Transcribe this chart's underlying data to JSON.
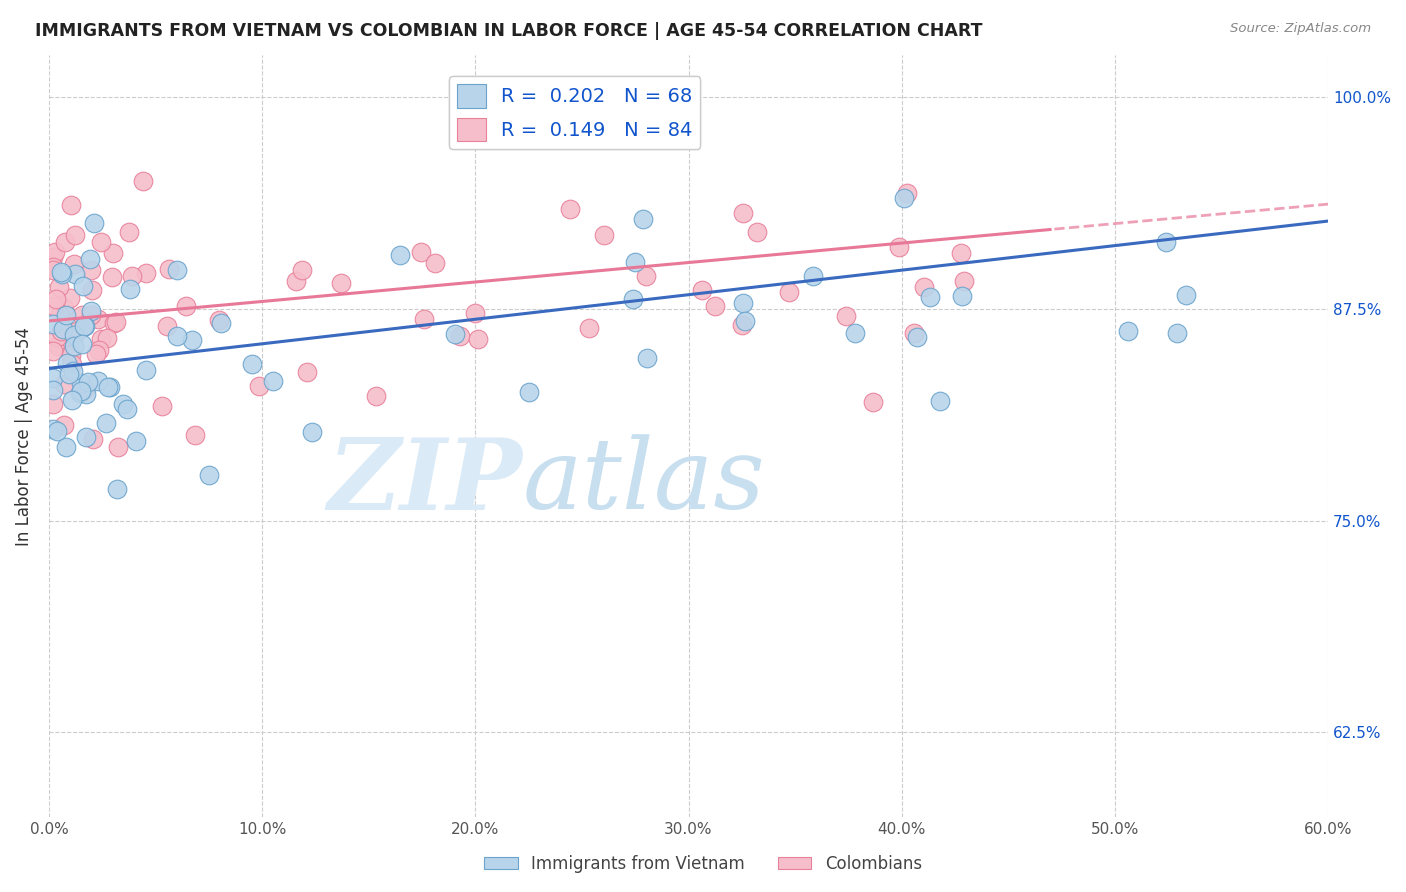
{
  "title": "IMMIGRANTS FROM VIETNAM VS COLOMBIAN IN LABOR FORCE | AGE 45-54 CORRELATION CHART",
  "source": "Source: ZipAtlas.com",
  "ylabel": "In Labor Force | Age 45-54",
  "xlim": [
    0.0,
    0.6
  ],
  "ylim": [
    0.575,
    1.025
  ],
  "xtick_labels": [
    "0.0%",
    "10.0%",
    "20.0%",
    "30.0%",
    "40.0%",
    "50.0%",
    "60.0%"
  ],
  "xtick_vals": [
    0.0,
    0.1,
    0.2,
    0.3,
    0.4,
    0.5,
    0.6
  ],
  "ytick_labels": [
    "62.5%",
    "75.0%",
    "87.5%",
    "100.0%"
  ],
  "ytick_vals": [
    0.625,
    0.75,
    0.875,
    1.0
  ],
  "legend_R_blue": "0.202",
  "legend_N_blue": "68",
  "legend_R_pink": "0.149",
  "legend_N_pink": "84",
  "blue_color": "#b8d4ea",
  "pink_color": "#f5beca",
  "blue_edge": "#6aa3cc",
  "pink_edge": "#e8809a",
  "blue_line": "#3a6abf",
  "pink_line": "#e87898",
  "legend_text_color": "#1155cc",
  "watermark_color": "#daeaf7"
}
